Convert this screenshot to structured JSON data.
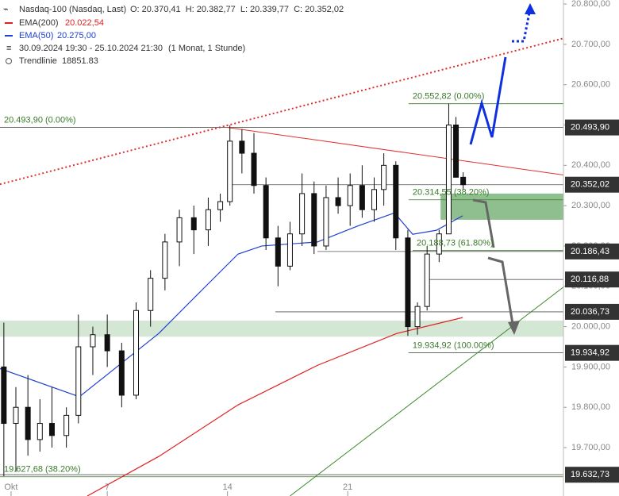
{
  "header": {
    "instrument": "Nasdaq-100 (Nasdaq, Last)",
    "ohlc": "O: 20.370,41  H: 20.382,77  L: 20.339,77  C: 20.352,02",
    "ema200_name": "EMA(200)",
    "ema200_value": "20.022,54",
    "ema50_name": "EMA(50)",
    "ema50_value": "20.275,00",
    "period": "30.09.2024 19:30 - 25.10.2024 21:30",
    "interval": "(1 Monat, 1 Stunde)",
    "trendline_name": "Trendlinie",
    "trendline_value": "18851.83"
  },
  "chart_data": {
    "type": "candlestick",
    "xlim": [
      -0.46,
      22.97
    ],
    "ylim": [
      19580,
      20810
    ],
    "xticks": [
      {
        "value": 0,
        "label": "Okt"
      },
      {
        "value": 4,
        "label": "7"
      },
      {
        "value": 9,
        "label": "14"
      },
      {
        "value": 14,
        "label": "21"
      }
    ],
    "yticks": [
      {
        "value": 20800,
        "label": "20.800,00"
      },
      {
        "value": 20700,
        "label": "20.700,00"
      },
      {
        "value": 20600,
        "label": "20.600,00"
      },
      {
        "value": 20500,
        "label": "20.500,00"
      },
      {
        "value": 20400,
        "label": "20.400,00"
      },
      {
        "value": 20300,
        "label": "20.300,00"
      },
      {
        "value": 20200,
        "label": "20.200,00"
      },
      {
        "value": 20100,
        "label": "20.100,00"
      },
      {
        "value": 20000,
        "label": "20.000,00"
      },
      {
        "value": 19900,
        "label": "19.900,00"
      },
      {
        "value": 19800,
        "label": "19.800,00"
      },
      {
        "value": 19700,
        "label": "19.700,00"
      }
    ],
    "x": [
      -0.3,
      0.2,
      0.7,
      1.2,
      1.7,
      2.3,
      2.8,
      3.4,
      4.0,
      4.6,
      5.2,
      5.8,
      6.4,
      7.0,
      7.6,
      8.2,
      8.7,
      9.1,
      9.6,
      10.1,
      10.6,
      11.1,
      11.6,
      12.1,
      12.6,
      13.1,
      13.6,
      14.1,
      14.6,
      15.1,
      15.5,
      16.0,
      16.5,
      16.9,
      17.3,
      17.8,
      18.2,
      18.5,
      18.8
    ],
    "open": [
      19900,
      19760,
      19800,
      19720,
      19760,
      19730,
      19780,
      19950,
      19980,
      19940,
      19830,
      20040,
      20120,
      20210,
      20270,
      20240,
      20290,
      20310,
      20460,
      20430,
      20350,
      20220,
      20150,
      20230,
      20330,
      20200,
      20320,
      20300,
      20350,
      20290,
      20340,
      20400,
      20220,
      20000,
      20050,
      20180,
      20230,
      20500,
      20370.41
    ],
    "high": [
      20010,
      19850,
      19880,
      19820,
      19850,
      19800,
      20030,
      20000,
      20030,
      19960,
      20060,
      20140,
      20230,
      20290,
      20300,
      20320,
      20330,
      20499,
      20490,
      20480,
      20370,
      20250,
      20260,
      20380,
      20360,
      20350,
      20370,
      20380,
      20400,
      20370,
      20430,
      20410,
      20240,
      20060,
      20200,
      20240,
      20553,
      20520,
      20382.77
    ],
    "low": [
      19629,
      19640,
      19680,
      19690,
      19700,
      19700,
      19760,
      19880,
      19900,
      19800,
      19820,
      20000,
      20090,
      20150,
      20180,
      20200,
      20260,
      20300,
      20380,
      20330,
      20190,
      20100,
      20140,
      20200,
      20180,
      20190,
      20280,
      20250,
      20270,
      20260,
      20300,
      20190,
      19977,
      19980,
      20040,
      20160,
      20230,
      20380,
      20339.77
    ],
    "close": [
      19760,
      19800,
      19720,
      19760,
      19730,
      19780,
      19950,
      19980,
      19940,
      19830,
      20040,
      20120,
      20210,
      20270,
      20240,
      20290,
      20310,
      20460,
      20430,
      20350,
      20220,
      20150,
      20230,
      20330,
      20200,
      20320,
      20300,
      20350,
      20290,
      20340,
      20400,
      20220,
      20000,
      20050,
      20180,
      20230,
      20500,
      20370.41,
      20352.02
    ],
    "series": [
      {
        "name": "EMA(50)",
        "color": "#2040d0",
        "x": [
          -0.46,
          2.84,
          6.14,
          7.79,
          9.44,
          10.43,
          12.74,
          14.39,
          15.94,
          16.7,
          17.69,
          18.78
        ],
        "values": [
          19896,
          19826,
          19983,
          20082,
          20180,
          20200,
          20210,
          20249,
          20282,
          20229,
          20239,
          20275
        ]
      },
      {
        "name": "EMA(200)",
        "color": "#e02020",
        "x": [
          3.17,
          6.14,
          9.44,
          12.74,
          16.04,
          18.78
        ],
        "values": [
          19580,
          19678,
          19806,
          19904,
          19983,
          20022.54
        ]
      }
    ],
    "trendlines": [
      {
        "color": "#e03030",
        "style": "solid",
        "x": [
          9.0,
          22.97
        ],
        "values": [
          20494,
          20376
        ]
      },
      {
        "color": "#e03030",
        "style": "dotted",
        "x": [
          -0.46,
          22.97
        ],
        "values": [
          20353,
          20715
        ]
      },
      {
        "color": "#3a8a2a",
        "style": "solid",
        "x": [
          11.6,
          22.97
        ],
        "values": [
          19580,
          20098
        ]
      }
    ],
    "zones": [
      {
        "from": -0.46,
        "low": 19975,
        "high": 20015
      },
      {
        "from": 17.86,
        "low": 20265,
        "high": 20330
      }
    ],
    "levels": [
      {
        "value": 20493.9,
        "from": -0.46,
        "label": "20.493,90 (0.00%)"
      },
      {
        "value": 20552.82,
        "from": 16.53,
        "label": "20.552,82 (0.00%)"
      },
      {
        "value": 20314.55,
        "from": 16.53,
        "label": "20.314,55 (38.20%)"
      },
      {
        "value": 20188.73,
        "from": 16.7,
        "label": "20.188,73 (61.80%)"
      },
      {
        "value": 19934.92,
        "from": 16.53,
        "label": "19.934,92 (100.00%)"
      },
      {
        "value": 19627.68,
        "from": -0.46,
        "label": "19.627,68 (38.20%)"
      }
    ],
    "price_lines": [
      {
        "value": 20493.9,
        "from": -0.46,
        "label": "20.493,90"
      },
      {
        "value": 20352.02,
        "from": 9.11,
        "label": "20.352,02"
      },
      {
        "value": 20186.43,
        "from": 12.74,
        "label": "20.186,43"
      },
      {
        "value": 20116.88,
        "from": 17.26,
        "label": "20.116,88"
      },
      {
        "value": 20036.73,
        "from": 10.99,
        "label": "20.036,73"
      },
      {
        "value": 19934.92,
        "from": 16.53,
        "label": "19.934,92"
      },
      {
        "value": 19632.73,
        "from": -0.46,
        "label": "19.632,73"
      }
    ]
  }
}
